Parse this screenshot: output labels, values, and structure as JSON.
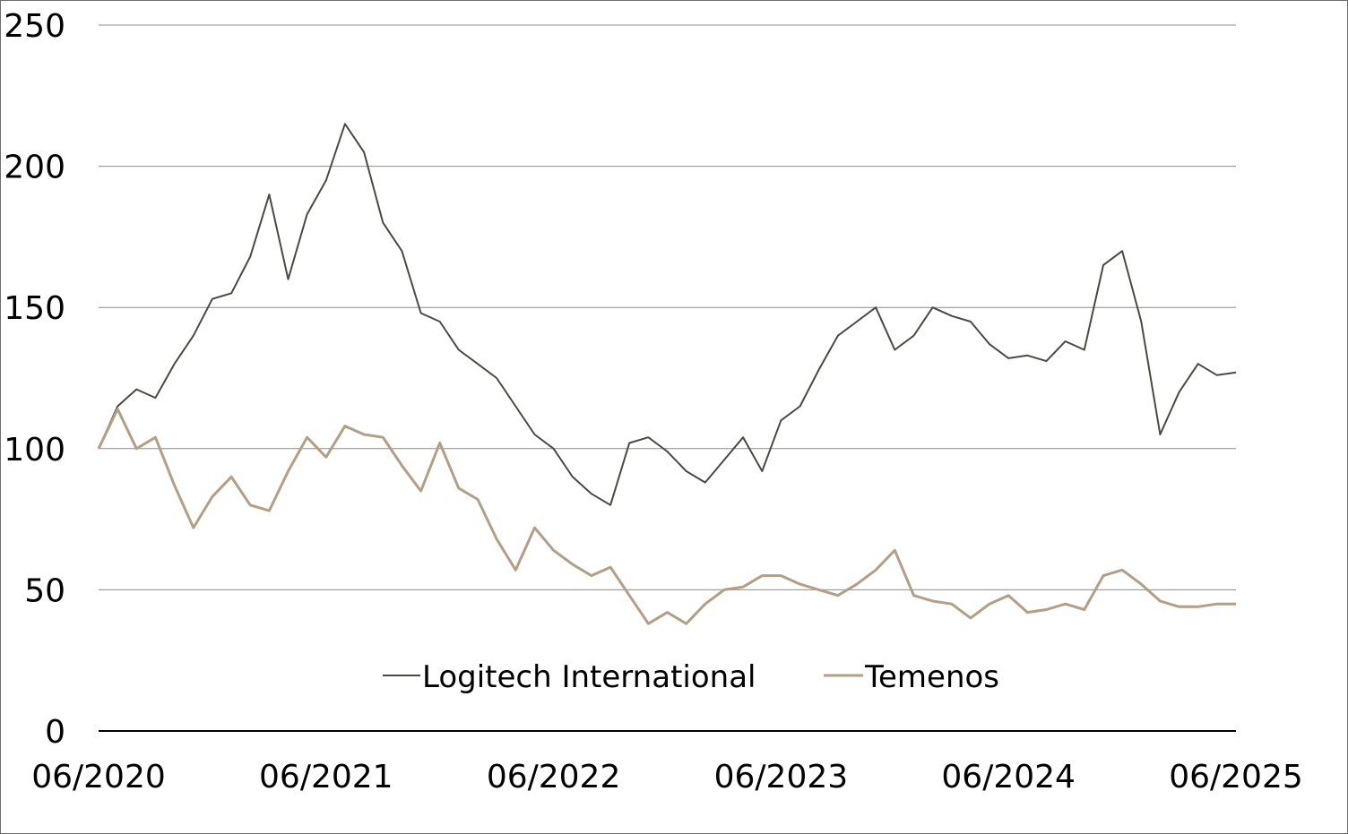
{
  "chart_data": {
    "type": "line",
    "title": "",
    "xlabel": "",
    "ylabel": "",
    "ylim": [
      0,
      250
    ],
    "yticks": [
      "0",
      "50",
      "100",
      "150",
      "200",
      "250"
    ],
    "xlim": [
      "2020-06",
      "2025-06"
    ],
    "xticks": [
      "06/2020",
      "06/2021",
      "06/2022",
      "06/2023",
      "06/2024",
      "06/2025"
    ],
    "grid": "horizontal",
    "legend_position": "bottom-center",
    "x_dates": [
      "2020-06",
      "2020-07",
      "2020-08",
      "2020-09",
      "2020-10",
      "2020-11",
      "2020-12",
      "2021-01",
      "2021-02",
      "2021-03",
      "2021-04",
      "2021-05",
      "2021-06",
      "2021-07",
      "2021-08",
      "2021-09",
      "2021-10",
      "2021-11",
      "2021-12",
      "2022-01",
      "2022-02",
      "2022-03",
      "2022-04",
      "2022-05",
      "2022-06",
      "2022-07",
      "2022-08",
      "2022-09",
      "2022-10",
      "2022-11",
      "2022-12",
      "2023-01",
      "2023-02",
      "2023-03",
      "2023-04",
      "2023-05",
      "2023-06",
      "2023-07",
      "2023-08",
      "2023-09",
      "2023-10",
      "2023-11",
      "2023-12",
      "2024-01",
      "2024-02",
      "2024-03",
      "2024-04",
      "2024-05",
      "2024-06",
      "2024-07",
      "2024-08",
      "2024-09",
      "2024-10",
      "2024-11",
      "2024-12",
      "2025-01",
      "2025-02",
      "2025-03",
      "2025-04",
      "2025-05",
      "2025-06"
    ],
    "series": [
      {
        "name": "Logitech International",
        "color": "#4a4a44",
        "values": [
          100,
          115,
          121,
          118,
          130,
          140,
          153,
          155,
          168,
          190,
          160,
          183,
          195,
          215,
          205,
          180,
          170,
          148,
          145,
          135,
          130,
          125,
          115,
          105,
          100,
          90,
          84,
          80,
          102,
          104,
          99,
          92,
          88,
          96,
          104,
          92,
          110,
          115,
          128,
          140,
          145,
          150,
          135,
          140,
          150,
          147,
          145,
          137,
          132,
          133,
          131,
          138,
          135,
          165,
          170,
          145,
          105,
          120,
          130,
          126,
          127
        ]
      },
      {
        "name": "Temenos",
        "color": "#b39e86",
        "values": [
          100,
          114,
          100,
          104,
          87,
          72,
          83,
          90,
          80,
          78,
          92,
          104,
          97,
          108,
          105,
          104,
          94,
          85,
          102,
          86,
          82,
          68,
          57,
          72,
          64,
          59,
          55,
          58,
          48,
          38,
          42,
          38,
          45,
          50,
          51,
          55,
          55,
          52,
          50,
          48,
          52,
          57,
          64,
          48,
          46,
          45,
          40,
          45,
          48,
          42,
          43,
          45,
          43,
          55,
          57,
          52,
          46,
          44,
          44,
          45,
          45
        ]
      }
    ]
  }
}
